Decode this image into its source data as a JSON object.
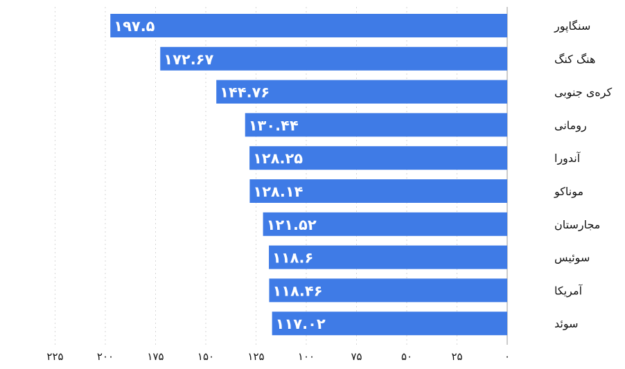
{
  "chart_data": {
    "type": "bar",
    "orientation": "horizontal",
    "direction": "rtl",
    "categories": [
      "سنگاپور",
      "هنگ کنگ",
      "کره‌ی جنوبی",
      "رومانی",
      "آندورا",
      "موناکو",
      "مجارستان",
      "سوئیس",
      "آمریکا",
      "سوئد"
    ],
    "values": [
      197.5,
      172.67,
      144.76,
      130.44,
      128.25,
      128.14,
      121.52,
      118.6,
      118.46,
      117.02
    ],
    "value_labels": [
      "۱۹۷.۵",
      "۱۷۲.۶۷",
      "۱۴۴.۷۶",
      "۱۳۰.۴۴",
      "۱۲۸.۲۵",
      "۱۲۸.۱۴",
      "۱۲۱.۵۲",
      "۱۱۸.۶",
      "۱۱۸.۴۶",
      "۱۱۷.۰۲"
    ],
    "xlim": [
      0,
      225
    ],
    "ticks": [
      0,
      25,
      50,
      75,
      100,
      125,
      150,
      175,
      200,
      225
    ],
    "tick_labels": [
      "۰",
      "۲۵",
      "۵۰",
      "۷۵",
      "۱۰۰",
      "۱۲۵",
      "۱۵۰",
      "۱۷۵",
      "۲۰۰",
      "۲۲۵"
    ],
    "grid": true,
    "colors": {
      "bar": "#3f7be6",
      "label": "#ffffff",
      "text": "#111111",
      "grid": "#d6d6d6"
    }
  }
}
